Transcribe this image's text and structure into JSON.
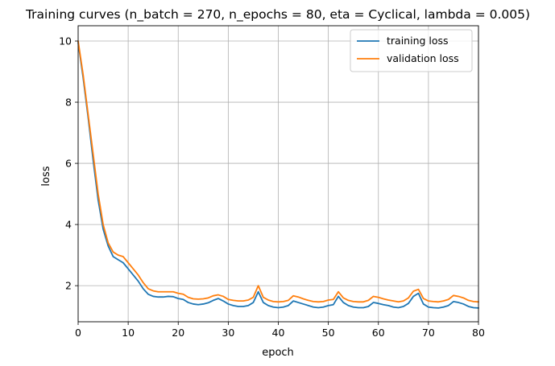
{
  "chart_data": {
    "type": "line",
    "title": "Training curves (n_batch = 270, n_epochs = 80, eta = Cyclical, lambda = 0.005)",
    "xlabel": "epoch",
    "ylabel": "loss",
    "xlim": [
      0,
      80
    ],
    "ylim": [
      0.82,
      10.5
    ],
    "xticks": [
      0,
      10,
      20,
      30,
      40,
      50,
      60,
      70,
      80
    ],
    "yticks": [
      2,
      4,
      6,
      8,
      10
    ],
    "grid": true,
    "legend_position": "top-right",
    "x": [
      0,
      1,
      2,
      3,
      4,
      5,
      6,
      7,
      8,
      9,
      10,
      11,
      12,
      13,
      14,
      15,
      16,
      17,
      18,
      19,
      20,
      21,
      22,
      23,
      24,
      25,
      26,
      27,
      28,
      29,
      30,
      31,
      32,
      33,
      34,
      35,
      36,
      37,
      38,
      39,
      40,
      41,
      42,
      43,
      44,
      45,
      46,
      47,
      48,
      49,
      50,
      51,
      52,
      53,
      54,
      55,
      56,
      57,
      58,
      59,
      60,
      61,
      62,
      63,
      64,
      65,
      66,
      67,
      68,
      69,
      70,
      71,
      72,
      73,
      74,
      75,
      76,
      77,
      78,
      79,
      80
    ],
    "series": [
      {
        "name": "training loss",
        "color": "#1f77b4",
        "values": [
          9.95,
          8.8,
          7.5,
          6.1,
          4.8,
          3.85,
          3.3,
          2.95,
          2.85,
          2.75,
          2.55,
          2.35,
          2.15,
          1.9,
          1.72,
          1.65,
          1.63,
          1.63,
          1.65,
          1.64,
          1.58,
          1.55,
          1.45,
          1.4,
          1.38,
          1.4,
          1.44,
          1.52,
          1.58,
          1.5,
          1.4,
          1.35,
          1.32,
          1.32,
          1.35,
          1.45,
          1.8,
          1.45,
          1.35,
          1.3,
          1.28,
          1.3,
          1.35,
          1.5,
          1.45,
          1.4,
          1.35,
          1.3,
          1.28,
          1.3,
          1.35,
          1.38,
          1.65,
          1.45,
          1.35,
          1.3,
          1.28,
          1.28,
          1.32,
          1.45,
          1.42,
          1.38,
          1.35,
          1.3,
          1.28,
          1.32,
          1.42,
          1.65,
          1.75,
          1.4,
          1.3,
          1.28,
          1.27,
          1.3,
          1.35,
          1.48,
          1.45,
          1.4,
          1.32,
          1.28,
          1.27
        ]
      },
      {
        "name": "validation loss",
        "color": "#ff7f0e",
        "values": [
          10.0,
          8.9,
          7.6,
          6.3,
          5.0,
          4.0,
          3.4,
          3.1,
          3.0,
          2.95,
          2.75,
          2.55,
          2.35,
          2.1,
          1.9,
          1.83,
          1.8,
          1.8,
          1.8,
          1.8,
          1.75,
          1.72,
          1.62,
          1.57,
          1.56,
          1.57,
          1.6,
          1.67,
          1.7,
          1.65,
          1.55,
          1.52,
          1.5,
          1.5,
          1.53,
          1.62,
          2.0,
          1.62,
          1.53,
          1.48,
          1.47,
          1.48,
          1.52,
          1.67,
          1.63,
          1.57,
          1.52,
          1.48,
          1.47,
          1.48,
          1.53,
          1.55,
          1.8,
          1.6,
          1.52,
          1.48,
          1.47,
          1.47,
          1.52,
          1.65,
          1.62,
          1.57,
          1.53,
          1.5,
          1.47,
          1.5,
          1.6,
          1.82,
          1.88,
          1.58,
          1.5,
          1.48,
          1.47,
          1.5,
          1.55,
          1.68,
          1.65,
          1.6,
          1.52,
          1.48,
          1.47
        ]
      }
    ]
  }
}
